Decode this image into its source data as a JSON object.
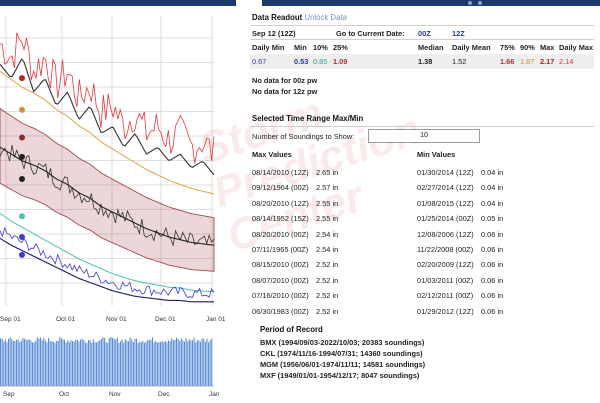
{
  "colors": {
    "accent": "#1d3a6c",
    "red_series": "#e8353a",
    "blue_series": "#3a3ad6",
    "band": "#a34a4a",
    "teal": "#4fc1b4",
    "gold": "#e0a24a"
  },
  "chart_data": {
    "type": "line",
    "x_ticks_top": [
      "Sep 01",
      "Oct 01",
      "Nov 01",
      "Dec 01",
      "Jan 01"
    ],
    "x_ticks_bottom": [
      "Sep",
      "Oct",
      "Nov",
      "Dec",
      "Jan"
    ],
    "series": [
      {
        "values": [
          2.2,
          2.1,
          2.25,
          2.0,
          2.1,
          1.9,
          2.0,
          1.8,
          1.9,
          1.7,
          1.75,
          1.6,
          1.7,
          1.55,
          1.6,
          1.5,
          1.55,
          1.45,
          1.5,
          1.4
        ]
      },
      {
        "values": [
          1.45,
          1.4,
          1.35,
          1.32,
          1.28,
          1.22,
          1.18,
          1.12,
          1.08,
          1.02,
          0.98,
          0.94,
          0.9,
          0.86,
          0.83,
          0.8,
          0.78,
          0.76,
          0.75,
          0.74
        ]
      },
      {
        "values": [
          0.85,
          0.8,
          0.76,
          0.72,
          0.68,
          0.64,
          0.6,
          0.56,
          0.53,
          0.5,
          0.47,
          0.45,
          0.43,
          0.42,
          0.41,
          0.4,
          0.4,
          0.39,
          0.39,
          0.39
        ]
      }
    ]
  },
  "readout": {
    "title": "Data Readout",
    "unlock": "Unlock Data",
    "date": "Sep 12 (12Z)",
    "go_to": "Go to Current Date:",
    "z00": "00Z",
    "z12": "12Z",
    "headers": [
      "Daily Min",
      "Min",
      "10%",
      "25%",
      "Median",
      "Daily Mean",
      "75%",
      "90%",
      "Max",
      "Daily Max"
    ],
    "values": [
      "0.67",
      "0.53",
      "0.85",
      "1.09",
      "1.38",
      "1.52",
      "1.66",
      "1.87",
      "2.17",
      "2.14"
    ],
    "nodata_00": "No data for 00z pw",
    "nodata_12": "No data for 12z pw"
  },
  "range": {
    "title": "Selected Time Range Max/Min",
    "soundings_label": "Number of Soundings to Show:",
    "soundings_value": "10",
    "max_header": "Max Values",
    "min_header": "Min Values",
    "max_rows": [
      [
        "08/14/2010 (12Z)",
        "2.65 in"
      ],
      [
        "09/12/1964 (00Z)",
        "2.57 in"
      ],
      [
        "08/20/2010 (12Z)",
        "2.55 in"
      ],
      [
        "08/14/1952 (15Z)",
        "2.55 in"
      ],
      [
        "08/20/2010 (00Z)",
        "2.54 in"
      ],
      [
        "07/11/1965 (00Z)",
        "2.54 in"
      ],
      [
        "08/15/2010 (00Z)",
        "2.52 in"
      ],
      [
        "08/07/2010 (00Z)",
        "2.52 in"
      ],
      [
        "07/16/2010 (00Z)",
        "2.52 in"
      ],
      [
        "06/30/1983 (00Z)",
        "2.52 in"
      ]
    ],
    "min_rows": [
      [
        "01/30/2014 (12Z)",
        "0.04 in"
      ],
      [
        "02/27/2014 (12Z)",
        "0.04 in"
      ],
      [
        "01/08/2015 (12Z)",
        "0.04 in"
      ],
      [
        "01/25/2014 (00Z)",
        "0.05 in"
      ],
      [
        "12/08/2006 (12Z)",
        "0.06 in"
      ],
      [
        "11/22/2008 (00Z)",
        "0.06 in"
      ],
      [
        "02/20/2009 (12Z)",
        "0.06 in"
      ],
      [
        "01/03/2011 (00Z)",
        "0.06 in"
      ],
      [
        "02/12/2011 (00Z)",
        "0.06 in"
      ],
      [
        "01/29/2012 (12Z)",
        "0.06 in"
      ]
    ]
  },
  "period": {
    "title": "Period of Record",
    "entries": [
      "BMX (1994/09/03-2022/10/03; 20383 soundings)",
      "CKL (1974/11/16-1994/07/31; 14360 soundings)",
      "MGM (1956/06/01-1974/11/11; 14581 soundings)",
      "MXF (1949/01/01-1954/12/17; 8047 soundings)"
    ]
  },
  "watermark": "Storm\nPrediction\nCenter"
}
